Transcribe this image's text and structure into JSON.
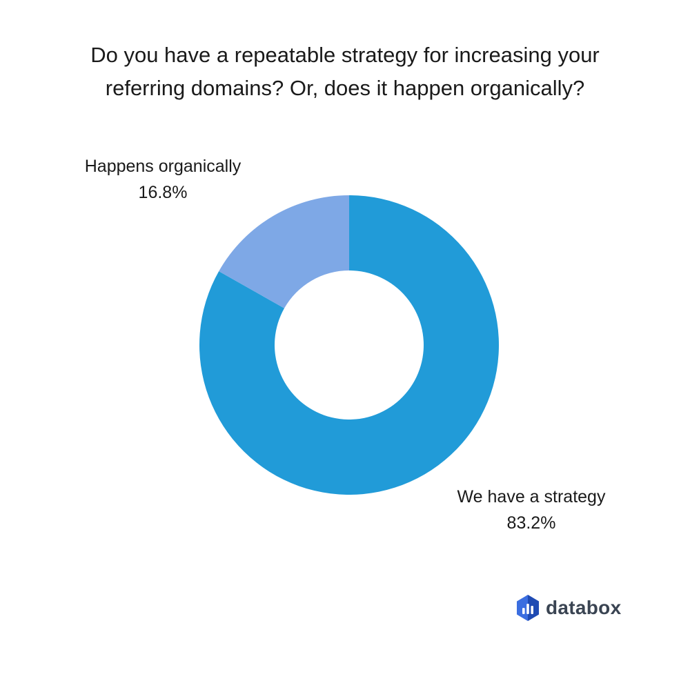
{
  "chart_data": {
    "type": "pie",
    "donut": true,
    "title": [
      "Do you have a repeatable strategy for increasing your",
      "referring domains? Or, does it happen organically?"
    ],
    "slices": [
      {
        "label": "We have a strategy",
        "value": 83.2,
        "value_label": "83.2%",
        "color": "#219bd8"
      },
      {
        "label": "Happens organically",
        "value": 16.8,
        "value_label": "16.8%",
        "color": "#7ea8e6"
      }
    ],
    "start_angle_deg": 0,
    "direction": "clockwise"
  },
  "brand": {
    "name": "databox",
    "logo_icon": "databox-logo-icon",
    "logo_colors": {
      "hex_dark": "#1f4bb3",
      "hex_light": "#3b6ee0",
      "bars": "#ffffff"
    }
  }
}
